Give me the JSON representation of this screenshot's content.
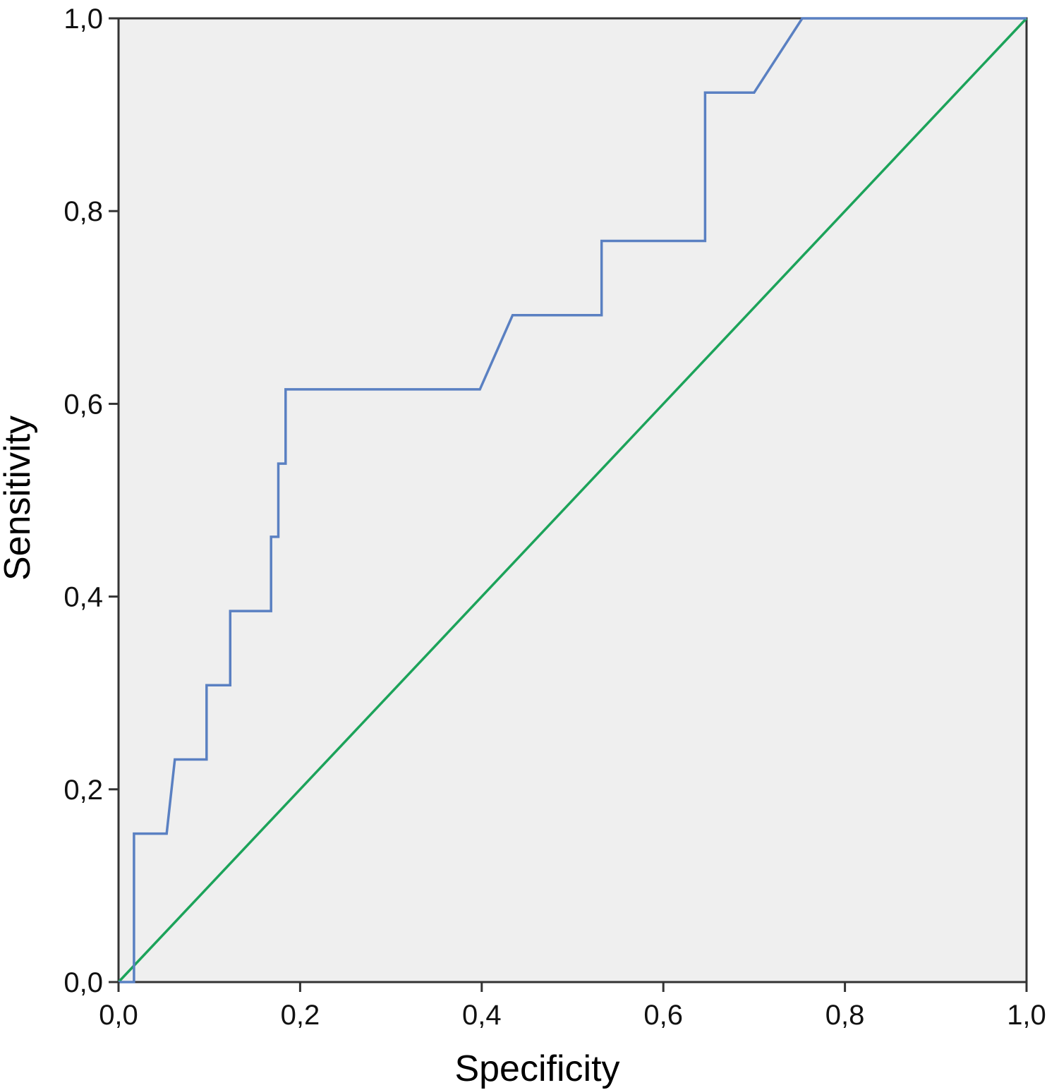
{
  "chart_data": {
    "type": "line",
    "title": "",
    "xlabel": "Specificity",
    "ylabel": "Sensitivity",
    "xlim": [
      0,
      1
    ],
    "ylim": [
      0,
      1
    ],
    "grid": false,
    "legend": "none",
    "x_ticks": [
      0,
      0.2,
      0.4,
      0.6,
      0.8,
      1.0
    ],
    "x_tick_labels": [
      "0,0",
      "0,2",
      "0,4",
      "0,6",
      "0,8",
      "1,0"
    ],
    "y_ticks": [
      0,
      0.2,
      0.4,
      0.6,
      0.8,
      1.0
    ],
    "y_tick_labels": [
      "0,0",
      "0,2",
      "0,4",
      "0,6",
      "0,8",
      "1,0"
    ],
    "colors": {
      "plot_background": "#efefef",
      "roc_curve": "#5a80c2",
      "reference_line": "#1ca35a",
      "axis": "#333333"
    },
    "series": [
      {
        "color": "#5a80c2",
        "points": [
          [
            0,
            0
          ],
          [
            0.017,
            0
          ],
          [
            0.017,
            0.154
          ],
          [
            0.053,
            0.154
          ],
          [
            0.062,
            0.231
          ],
          [
            0.097,
            0.231
          ],
          [
            0.097,
            0.308
          ],
          [
            0.123,
            0.308
          ],
          [
            0.123,
            0.385
          ],
          [
            0.168,
            0.385
          ],
          [
            0.168,
            0.462
          ],
          [
            0.176,
            0.462
          ],
          [
            0.176,
            0.538
          ],
          [
            0.184,
            0.538
          ],
          [
            0.184,
            0.615
          ],
          [
            0.398,
            0.615
          ],
          [
            0.434,
            0.692
          ],
          [
            0.532,
            0.692
          ],
          [
            0.532,
            0.769
          ],
          [
            0.646,
            0.769
          ],
          [
            0.646,
            0.923
          ],
          [
            0.7,
            0.923
          ],
          [
            0.753,
            1.0
          ],
          [
            1.0,
            1.0
          ]
        ]
      },
      {
        "color": "#1ca35a",
        "points": [
          [
            0,
            0
          ],
          [
            1,
            1
          ]
        ]
      }
    ]
  }
}
